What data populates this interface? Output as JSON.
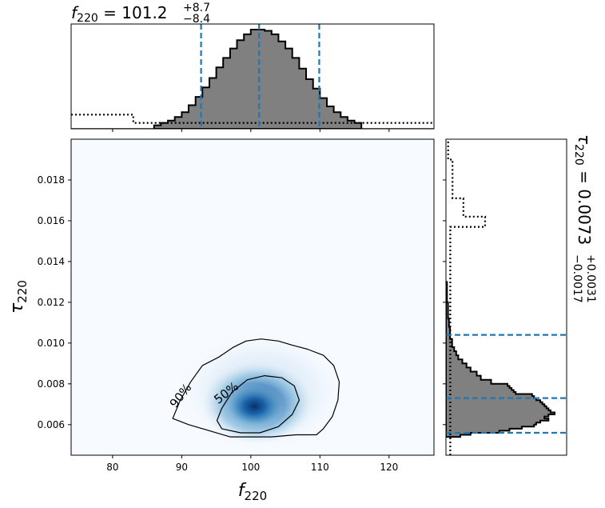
{
  "chart_data": [
    {
      "type": "heatmap",
      "panel": "joint",
      "xlabel": "f",
      "xlabel_sub": "220",
      "ylabel": "τ",
      "ylabel_sub": "220",
      "xlim": [
        74,
        126.5
      ],
      "ylim": [
        0.0045,
        0.02
      ],
      "xticks": [
        80,
        90,
        100,
        110,
        120
      ],
      "yticks": [
        0.006,
        0.008,
        0.01,
        0.012,
        0.014,
        0.016,
        0.018
      ],
      "colormap": "Blues",
      "density_peak": [
        100.5,
        0.0069
      ],
      "contours": [
        {
          "label": "90%",
          "points": [
            [
              88.7,
              0.0063
            ],
            [
              89.8,
              0.0072
            ],
            [
              91.3,
              0.0081
            ],
            [
              93.0,
              0.0089
            ],
            [
              95.3,
              0.0093
            ],
            [
              97.5,
              0.0098
            ],
            [
              99.3,
              0.0101
            ],
            [
              101.5,
              0.0102
            ],
            [
              104.0,
              0.0101
            ],
            [
              106.0,
              0.0099
            ],
            [
              108.2,
              0.0097
            ],
            [
              110.5,
              0.0094
            ],
            [
              112.0,
              0.0089
            ],
            [
              112.8,
              0.0081
            ],
            [
              112.6,
              0.0072
            ],
            [
              111.8,
              0.0064
            ],
            [
              110.5,
              0.0058
            ],
            [
              109.5,
              0.0055
            ],
            [
              106.5,
              0.0055
            ],
            [
              103.0,
              0.0054
            ],
            [
              100.0,
              0.0054
            ],
            [
              97.0,
              0.0054
            ],
            [
              94.0,
              0.0057
            ],
            [
              91.0,
              0.006
            ],
            [
              88.7,
              0.0063
            ]
          ]
        },
        {
          "label": "50%",
          "points": [
            [
              95.1,
              0.0062
            ],
            [
              95.8,
              0.0068
            ],
            [
              97.3,
              0.0076
            ],
            [
              99.5,
              0.0082
            ],
            [
              102.0,
              0.0084
            ],
            [
              104.5,
              0.0083
            ],
            [
              106.3,
              0.0079
            ],
            [
              107.0,
              0.0072
            ],
            [
              106.0,
              0.0065
            ],
            [
              104.0,
              0.0059
            ],
            [
              101.3,
              0.0056
            ],
            [
              98.5,
              0.0056
            ],
            [
              95.8,
              0.0058
            ],
            [
              95.1,
              0.0062
            ]
          ]
        }
      ]
    },
    {
      "type": "histogram",
      "panel": "top-marginal",
      "parameter": "f",
      "parameter_sub": "220",
      "title_value": "101.2",
      "title_plus": "+8.7",
      "title_minus": "−8.4",
      "quantiles": [
        92.8,
        101.2,
        109.9
      ],
      "bin_edges": [
        86,
        87,
        88,
        89,
        90,
        91,
        92,
        93,
        94,
        95,
        96,
        97,
        98,
        99,
        100,
        101,
        102,
        103,
        104,
        105,
        106,
        107,
        108,
        109,
        110,
        111,
        112,
        113,
        114,
        115,
        116
      ],
      "counts": [
        3,
        5,
        7,
        10,
        14,
        20,
        27,
        35,
        43,
        52,
        60,
        68,
        75,
        80,
        84,
        84,
        83,
        80,
        74,
        68,
        60,
        51,
        42,
        34,
        26,
        19,
        14,
        10,
        7,
        5
      ],
      "prior": {
        "x": [
          74,
          83,
          83,
          86,
          86,
          126.5
        ],
        "y": [
          12,
          12,
          5,
          5,
          5,
          5
        ]
      }
    },
    {
      "type": "histogram",
      "panel": "right-marginal",
      "parameter": "τ",
      "parameter_sub": "220",
      "title_value": "0.0073",
      "title_plus": "+0.0031",
      "title_minus": "−0.0017",
      "quantiles": [
        0.0056,
        0.0073,
        0.0104
      ],
      "bin_edges": [
        0.0054,
        0.0055,
        0.0056,
        0.0057,
        0.0058,
        0.0059,
        0.006,
        0.0061,
        0.0062,
        0.0063,
        0.0064,
        0.0065,
        0.0066,
        0.0067,
        0.0068,
        0.0069,
        0.007,
        0.0071,
        0.0072,
        0.0073,
        0.0074,
        0.0075,
        0.0076,
        0.0077,
        0.0078,
        0.0079,
        0.008,
        0.0082,
        0.0084,
        0.0086,
        0.0088,
        0.009,
        0.0092,
        0.0094,
        0.0096,
        0.0098,
        0.01,
        0.0102,
        0.0104,
        0.0106,
        0.0108,
        0.011,
        0.0112,
        0.0114,
        0.0116,
        0.0118,
        0.012,
        0.0122,
        0.0124,
        0.0126,
        0.013
      ],
      "counts": [
        7,
        12,
        26,
        31,
        37,
        43,
        44,
        46,
        50,
        48,
        50,
        53,
        51,
        50,
        49,
        48,
        47,
        46,
        44,
        43,
        42,
        34,
        33,
        32,
        31,
        30,
        22,
        17,
        15,
        12,
        10,
        8,
        6,
        5,
        4,
        3,
        3,
        2,
        2,
        2,
        1.5,
        1.5,
        1,
        1,
        1,
        1,
        0.5,
        0.5,
        0.5,
        0.5
      ],
      "prior": {
        "x": [
          2,
          2,
          18,
          18,
          8,
          8,
          3,
          3,
          1,
          1
        ],
        "y": [
          0.0045,
          0.0157,
          0.0157,
          0.0162,
          0.0162,
          0.0171,
          0.0171,
          0.019,
          0.019,
          0.02
        ]
      }
    }
  ]
}
